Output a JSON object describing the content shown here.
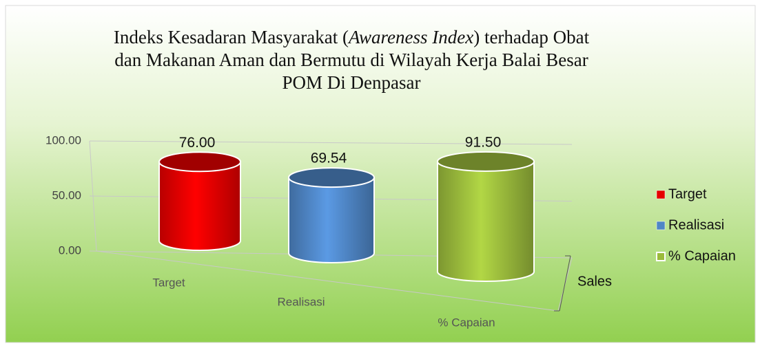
{
  "chart_data": {
    "type": "cylinder",
    "title": [
      "Indeks Kesadaran Masyarakat (",
      "Awareness Index",
      ") terhadap Obat dan Makanan Aman dan Bermutu di Wilayah Kerja Balai Besar POM Di Denpasar"
    ],
    "categories": [
      "Target",
      "Realisasi",
      "% Capaian"
    ],
    "series": [
      {
        "name": "Sales",
        "values": [
          76.0,
          69.54,
          91.5
        ],
        "value_labels": [
          "76.00",
          "69.54",
          "91.50"
        ]
      }
    ],
    "colors": [
      "#e60000",
      "#4f86c6",
      "#9bbb3c"
    ],
    "ylim": [
      0,
      100
    ],
    "yticks": [
      {
        "value": 0,
        "label": "0.00"
      },
      {
        "value": 50,
        "label": "50.00"
      },
      {
        "value": 100,
        "label": "100.00"
      }
    ],
    "grid": true,
    "legend": "right"
  }
}
